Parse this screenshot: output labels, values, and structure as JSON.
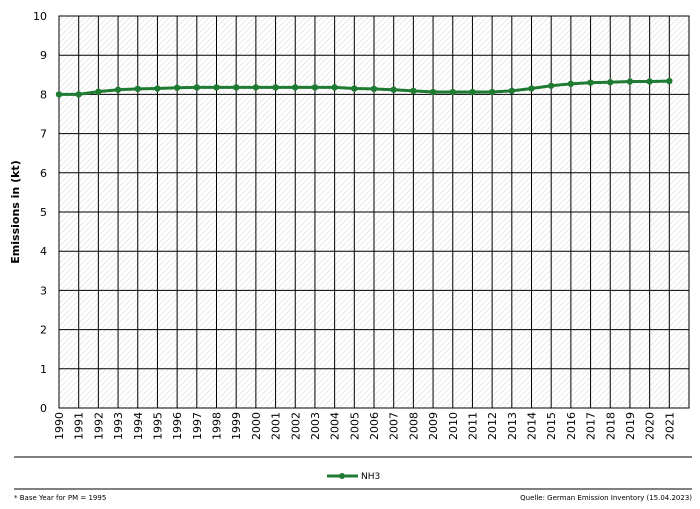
{
  "chart_data": {
    "type": "line",
    "title": "",
    "xlabel": "",
    "ylabel": "Emissions in (kt)",
    "ylim": [
      0,
      10
    ],
    "y_ticks": [
      0,
      1,
      2,
      3,
      4,
      5,
      6,
      7,
      8,
      9,
      10
    ],
    "grid": true,
    "legend_position": "bottom-center",
    "categories": [
      "1990",
      "1991",
      "1992",
      "1993",
      "1994",
      "1995",
      "1996",
      "1997",
      "1998",
      "1999",
      "2000",
      "2001",
      "2002",
      "2003",
      "2004",
      "2005",
      "2006",
      "2007",
      "2008",
      "2009",
      "2010",
      "2011",
      "2012",
      "2013",
      "2014",
      "2015",
      "2016",
      "2017",
      "2018",
      "2019",
      "2020",
      "2021"
    ],
    "series": [
      {
        "name": "NH3",
        "color": "#1e7b31",
        "values": [
          8.0,
          8.0,
          8.07,
          8.12,
          8.14,
          8.15,
          8.17,
          8.18,
          8.18,
          8.18,
          8.18,
          8.18,
          8.18,
          8.18,
          8.18,
          8.15,
          8.14,
          8.12,
          8.09,
          8.06,
          8.06,
          8.06,
          8.06,
          8.09,
          8.15,
          8.22,
          8.27,
          8.3,
          8.31,
          8.33,
          8.33,
          8.34
        ]
      }
    ]
  },
  "footer": {
    "left_note": "* Base Year for PM = 1995",
    "source": "Quelle:  German Emission Inventory (15.04.2023)"
  }
}
